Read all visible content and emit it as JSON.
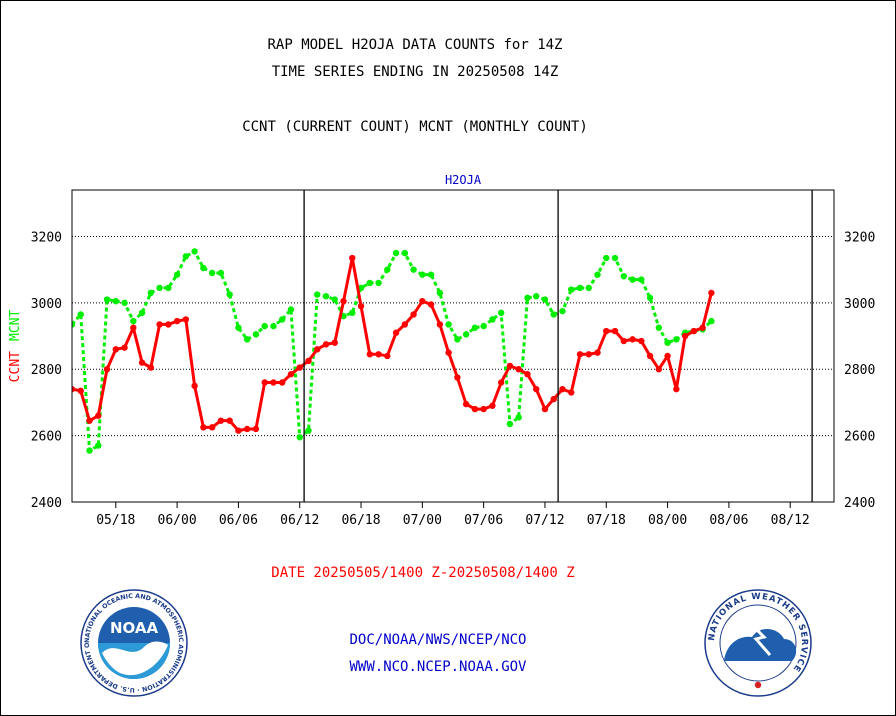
{
  "header": {
    "title_line1": "RAP MODEL H2OJA DATA COUNTS for 14Z",
    "title_line2": "TIME SERIES ENDING IN 20250508 14Z",
    "subtitle": "CCNT (CURRENT COUNT) MCNT (MONTHLY COUNT)"
  },
  "footer": {
    "date_range": "DATE 20250505/1400 Z-20250508/1400 Z",
    "credit_line1": "DOC/NOAA/NWS/NCEP/NCO",
    "credit_line2": "WWW.NCO.NCEP.NOAA.GOV"
  },
  "logos": {
    "noaa": {
      "text": "NOAA",
      "ring_text": "NATIONAL OCEANIC AND ATMOSPHERIC ADMINISTRATION · U.S. DEPARTMENT OF COMMERCE"
    },
    "nws": {
      "ring_text": "NATIONAL WEATHER SERVICE"
    }
  },
  "colors": {
    "ccnt": "#ff0000",
    "mcnt": "#00ee00",
    "label_blue": "#0000cc",
    "grid": "#000000"
  },
  "chart_data": {
    "type": "line",
    "title": "H2OJA",
    "ylabel_ccnt": "CCNT",
    "ylabel_mcnt": "MCNT",
    "ylim": [
      2400,
      3340
    ],
    "yticks": [
      2400,
      2600,
      2800,
      3000,
      3200
    ],
    "x_index_range": [
      0,
      87
    ],
    "xtick_labels": [
      "05/18",
      "06/00",
      "06/06",
      "06/12",
      "06/18",
      "07/00",
      "07/06",
      "07/12",
      "07/18",
      "08/00",
      "08/06",
      "08/12"
    ],
    "xtick_positions": [
      5,
      12,
      19,
      26,
      33,
      40,
      47,
      54,
      61,
      68,
      75,
      82
    ],
    "day_boundaries": [
      26.5,
      55.5,
      84.5
    ],
    "grid": true,
    "series": [
      {
        "name": "CCNT",
        "style": "solid",
        "values": [
          2740,
          2735,
          2645,
          2660,
          2800,
          2860,
          2865,
          2925,
          2820,
          2805,
          2935,
          2935,
          2945,
          2950,
          2750,
          2625,
          2625,
          2645,
          2645,
          2615,
          2620,
          2620,
          2760,
          2760,
          2760,
          2785,
          2805,
          2825,
          2860,
          2875,
          2880,
          3005,
          3135,
          2990,
          2845,
          2845,
          2840,
          2910,
          2935,
          2965,
          3005,
          2995,
          2935,
          2850,
          2775,
          2695,
          2680,
          2680,
          2690,
          2760,
          2810,
          2800,
          2785,
          2740,
          2680,
          2710,
          2740,
          2730,
          2845,
          2845,
          2850,
          2915,
          2915,
          2885,
          2890,
          2885,
          2840,
          2800,
          2840,
          2740,
          2900,
          2915,
          2925,
          3030
        ]
      },
      {
        "name": "MCNT",
        "style": "dashed",
        "values": [
          2935,
          2965,
          2555,
          2570,
          3010,
          3005,
          3000,
          2945,
          2970,
          3030,
          3045,
          3045,
          3085,
          3140,
          3155,
          3105,
          3090,
          3090,
          3025,
          2925,
          2890,
          2905,
          2930,
          2930,
          2950,
          2980,
          2595,
          2615,
          3025,
          3020,
          3010,
          2960,
          2970,
          3045,
          3060,
          3060,
          3100,
          3150,
          3150,
          3100,
          3085,
          3085,
          3030,
          2935,
          2890,
          2905,
          2925,
          2930,
          2950,
          2970,
          2635,
          2655,
          3015,
          3020,
          3010,
          2965,
          2975,
          3040,
          3045,
          3045,
          3085,
          3135,
          3135,
          3080,
          3070,
          3070,
          3015,
          2925,
          2880,
          2890,
          2910,
          2915,
          2920,
          2945
        ]
      }
    ]
  }
}
